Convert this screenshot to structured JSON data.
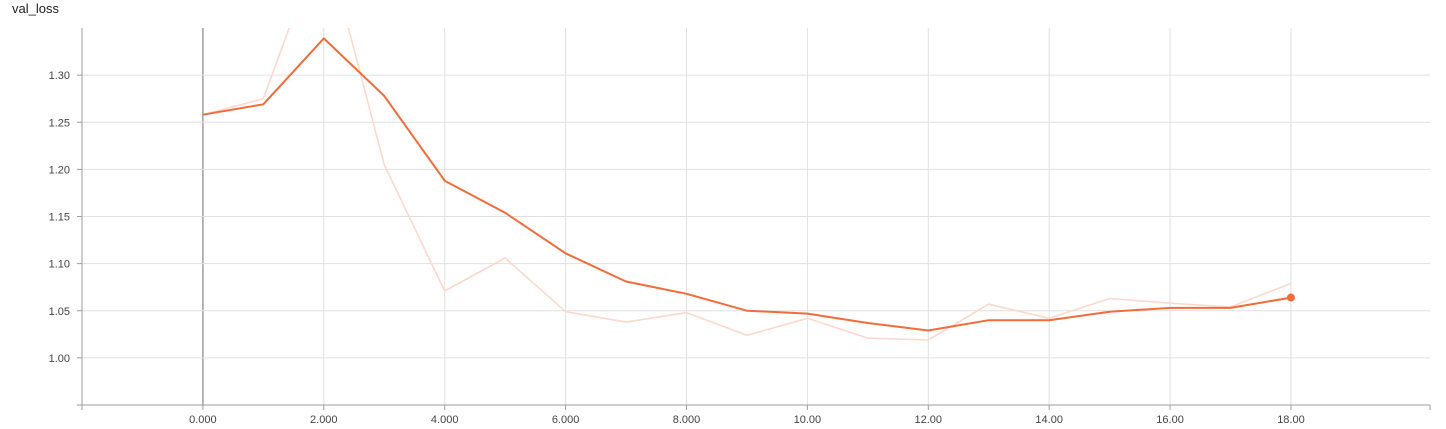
{
  "chart_data": {
    "type": "line",
    "title": "val_loss",
    "xlabel": "",
    "ylabel": "",
    "xlim": [
      -2,
      20.3
    ],
    "ylim": [
      0.95,
      1.35
    ],
    "grid": true,
    "x_ticks": [
      {
        "value": 0,
        "label": "0.000"
      },
      {
        "value": 2,
        "label": "2.000"
      },
      {
        "value": 4,
        "label": "4.000"
      },
      {
        "value": 6,
        "label": "6.000"
      },
      {
        "value": 8,
        "label": "8.000"
      },
      {
        "value": 10,
        "label": "10.00"
      },
      {
        "value": 12,
        "label": "12.00"
      },
      {
        "value": 14,
        "label": "14.00"
      },
      {
        "value": 16,
        "label": "16.00"
      },
      {
        "value": 18,
        "label": "18.00"
      }
    ],
    "y_ticks": [
      {
        "value": 1.0,
        "label": "1.00"
      },
      {
        "value": 1.05,
        "label": "1.05"
      },
      {
        "value": 1.1,
        "label": "1.10"
      },
      {
        "value": 1.15,
        "label": "1.15"
      },
      {
        "value": 1.2,
        "label": "1.20"
      },
      {
        "value": 1.25,
        "label": "1.25"
      },
      {
        "value": 1.3,
        "label": "1.30"
      }
    ],
    "series": [
      {
        "role": "raw",
        "color": "#fcd9cc",
        "x": [
          0,
          1,
          2,
          3,
          4,
          5,
          6,
          7,
          8,
          9,
          10,
          11,
          12,
          13,
          14,
          15,
          16,
          17,
          18
        ],
        "y": [
          1.258,
          1.275,
          1.45,
          1.205,
          1.071,
          1.106,
          1.049,
          1.038,
          1.048,
          1.024,
          1.042,
          1.021,
          1.019,
          1.057,
          1.042,
          1.063,
          1.058,
          1.054,
          1.079
        ]
      },
      {
        "role": "smoothed",
        "color": "#f26b3a",
        "x": [
          0,
          1,
          2,
          3,
          4,
          5,
          6,
          7,
          8,
          9,
          10,
          11,
          12,
          13,
          14,
          15,
          16,
          17,
          18
        ],
        "y": [
          1.258,
          1.269,
          1.339,
          1.278,
          1.188,
          1.154,
          1.111,
          1.081,
          1.068,
          1.05,
          1.047,
          1.037,
          1.029,
          1.04,
          1.04,
          1.049,
          1.053,
          1.053,
          1.064
        ]
      }
    ]
  }
}
